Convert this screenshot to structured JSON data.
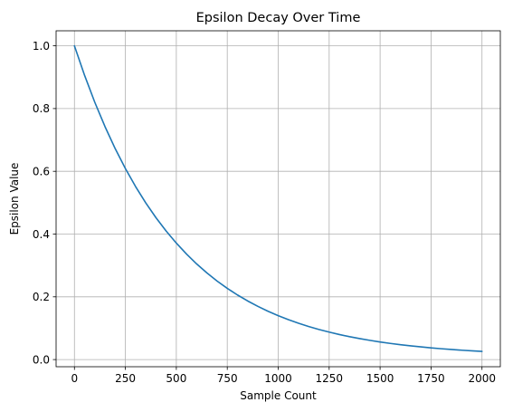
{
  "chart_data": {
    "type": "line",
    "title": "Epsilon Decay Over Time",
    "xlabel": "Sample Count",
    "ylabel": "Epsilon Value",
    "xlim": [
      -90,
      2090
    ],
    "ylim": [
      -0.0228,
      1.0479
    ],
    "xticks": [
      0,
      250,
      500,
      750,
      1000,
      1250,
      1500,
      1750,
      2000
    ],
    "xtick_labels": [
      "0",
      "250",
      "500",
      "750",
      "1000",
      "1250",
      "1500",
      "1750",
      "2000"
    ],
    "yticks": [
      0.0,
      0.2,
      0.4,
      0.6,
      0.8,
      1.0
    ],
    "ytick_labels": [
      "0.0",
      "0.2",
      "0.4",
      "0.6",
      "0.8",
      "1.0"
    ],
    "grid": true,
    "series": [
      {
        "color": "#1f77b4",
        "x": [
          0,
          50,
          100,
          150,
          200,
          250,
          300,
          350,
          400,
          450,
          500,
          550,
          600,
          650,
          700,
          750,
          800,
          850,
          900,
          950,
          1000,
          1050,
          1100,
          1150,
          1200,
          1250,
          1300,
          1350,
          1400,
          1450,
          1500,
          1550,
          1600,
          1650,
          1700,
          1750,
          1800,
          1850,
          1900,
          1950,
          2000
        ],
        "y": [
          1.0,
          0.9055,
          0.8199,
          0.7424,
          0.6723,
          0.6088,
          0.5514,
          0.4994,
          0.4523,
          0.4097,
          0.3712,
          0.3363,
          0.3047,
          0.2762,
          0.2504,
          0.227,
          0.2059,
          0.1868,
          0.1696,
          0.154,
          0.1399,
          0.1272,
          0.1157,
          0.1053,
          0.096,
          0.0875,
          0.0799,
          0.073,
          0.0668,
          0.0612,
          0.0561,
          0.0515,
          0.0474,
          0.0437,
          0.0404,
          0.0373,
          0.0346,
          0.0321,
          0.0299,
          0.0279,
          0.0261
        ]
      }
    ]
  }
}
